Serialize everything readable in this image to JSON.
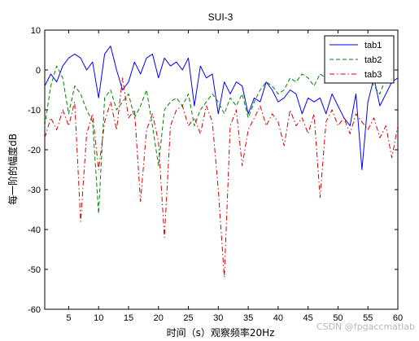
{
  "chart_data": {
    "type": "line",
    "title": "SUI-3",
    "xlabel": "时间（s）观察频率20Hz",
    "ylabel": "每一阶的幅度dB",
    "xlim": [
      1,
      60
    ],
    "ylim": [
      -60,
      10
    ],
    "xticks": [
      5,
      10,
      15,
      20,
      25,
      30,
      35,
      40,
      45,
      50,
      55,
      60
    ],
    "yticks": [
      10,
      0,
      -10,
      -20,
      -30,
      -40,
      -50,
      -60
    ],
    "grid": false,
    "legend_position": "top-right",
    "series": [
      {
        "name": "tab1",
        "color": "#0000ff",
        "style": "solid",
        "x": [
          1,
          2,
          3,
          4,
          5,
          6,
          7,
          8,
          9,
          10,
          11,
          12,
          13,
          14,
          15,
          16,
          17,
          18,
          19,
          20,
          21,
          22,
          23,
          24,
          25,
          26,
          27,
          28,
          29,
          30,
          31,
          32,
          33,
          34,
          35,
          36,
          37,
          38,
          39,
          40,
          41,
          42,
          43,
          44,
          45,
          46,
          47,
          48,
          49,
          50,
          51,
          52,
          53,
          54,
          55,
          56,
          57,
          58,
          59,
          60
        ],
        "values": [
          -4,
          -1,
          -3,
          1,
          3,
          4,
          3,
          0,
          2,
          -7,
          4,
          6,
          0,
          -5,
          -3,
          2,
          -1,
          3,
          4,
          -2,
          3,
          1,
          2,
          0,
          3,
          -9,
          1,
          -2,
          -1,
          -11,
          -3,
          -6,
          -3,
          -4,
          -11,
          -7,
          -8,
          -3,
          -5,
          -8,
          -7,
          -5,
          -6,
          -11,
          -7,
          -8,
          -7,
          -11,
          -6,
          -9,
          -12,
          -14,
          -6,
          -25,
          -8,
          -2,
          -9,
          -6,
          -3,
          -2
        ]
      },
      {
        "name": "tab2",
        "color": "#008000",
        "style": "dashed",
        "x": [
          1,
          2,
          3,
          4,
          5,
          6,
          7,
          8,
          9,
          10,
          11,
          12,
          13,
          14,
          15,
          16,
          17,
          18,
          19,
          20,
          21,
          22,
          23,
          24,
          25,
          26,
          27,
          28,
          29,
          30,
          31,
          32,
          33,
          34,
          35,
          36,
          37,
          38,
          39,
          40,
          41,
          42,
          43,
          44,
          45,
          46,
          47,
          48,
          49,
          50,
          51,
          52,
          53,
          54,
          55,
          56,
          57,
          58,
          59,
          60
        ],
        "values": [
          -14,
          -4,
          1,
          -2,
          -11,
          -4,
          -6,
          -10,
          -13,
          -36,
          -7,
          -5,
          -10,
          -8,
          -6,
          -12,
          -9,
          -5,
          -14,
          -24,
          -10,
          -8,
          -7,
          -9,
          -6,
          -14,
          -10,
          -8,
          -6,
          -8,
          -11,
          -7,
          -9,
          -6,
          -12,
          -8,
          -5,
          -3,
          -4,
          -6,
          -5,
          -2,
          -3,
          -1,
          -2,
          -4,
          -1,
          -2,
          -3,
          -2,
          -1,
          0,
          -2,
          -3,
          -1,
          -4,
          -6,
          -2,
          -3,
          -2
        ]
      },
      {
        "name": "tab3",
        "color": "#d40000",
        "style": "dashdot",
        "x": [
          1,
          2,
          3,
          4,
          5,
          6,
          7,
          8,
          9,
          10,
          11,
          12,
          13,
          14,
          15,
          16,
          17,
          18,
          19,
          20,
          21,
          22,
          23,
          24,
          25,
          26,
          27,
          28,
          29,
          30,
          31,
          32,
          33,
          34,
          35,
          36,
          37,
          38,
          39,
          40,
          41,
          42,
          43,
          44,
          45,
          46,
          47,
          48,
          49,
          50,
          51,
          52,
          53,
          54,
          55,
          56,
          57,
          58,
          59,
          60
        ],
        "values": [
          -17,
          -12,
          -15,
          -10,
          -14,
          -8,
          -38,
          -16,
          -11,
          -25,
          -13,
          -8,
          -15,
          -2,
          -12,
          -10,
          -33,
          -15,
          -11,
          -18,
          -42,
          -14,
          -10,
          -9,
          -14,
          -12,
          -16,
          -9,
          -13,
          -30,
          -52,
          -14,
          -10,
          -24,
          -15,
          -12,
          -9,
          -14,
          -11,
          -13,
          -19,
          -10,
          -14,
          -12,
          -16,
          -11,
          -32,
          -13,
          -10,
          -14,
          -12,
          -16,
          -11,
          -13,
          -15,
          -12,
          -17,
          -14,
          -22,
          -14
        ]
      }
    ],
    "watermark": "CSDN @fpgaccmatlab"
  }
}
